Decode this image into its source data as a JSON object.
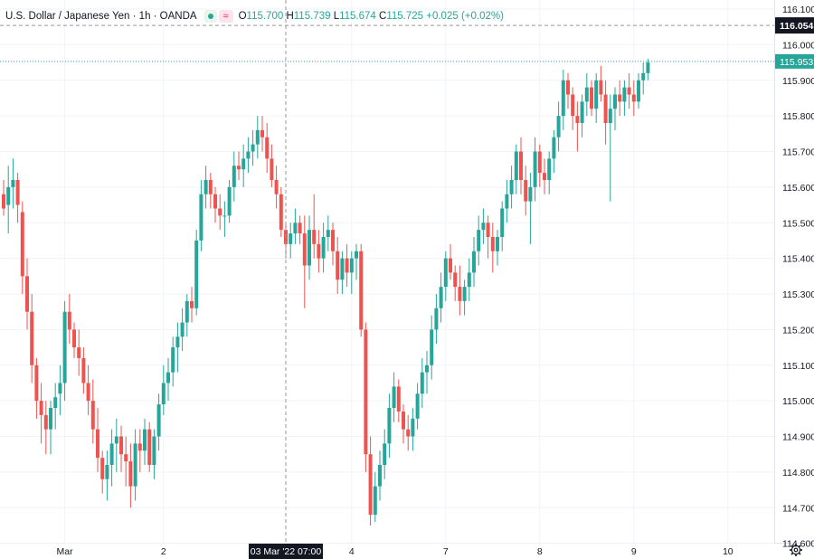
{
  "header": {
    "symbol": "U.S. Dollar / Japanese Yen · 1h · OANDA",
    "o_label": "O",
    "o": "115.700",
    "h_label": "H",
    "h": "115.739",
    "l_label": "L",
    "l": "115.674",
    "c_label": "C",
    "c": "115.725",
    "change": "+0.025 (+0.02%)"
  },
  "icons": {
    "visibility": "eye-dot-icon",
    "indicators": "wave-icon",
    "settings": "gear-icon"
  },
  "colors": {
    "up": "#26a69a",
    "down": "#ef5350",
    "grid": "#f0f3fa",
    "axis_text": "#131722"
  },
  "chart_data": {
    "type": "candlestick",
    "title": "U.S. Dollar / Japanese Yen · 1h · OANDA",
    "ylim": [
      114.5,
      116.1
    ],
    "y_ticks": [
      "116.100",
      "116.000",
      "115.900",
      "115.800",
      "115.700",
      "115.600",
      "115.500",
      "115.400",
      "115.300",
      "115.200",
      "115.100",
      "115.000",
      "114.900",
      "114.800",
      "114.700",
      "114.600"
    ],
    "x_ticks": [
      {
        "label": "Mar",
        "bar": 13
      },
      {
        "label": "2",
        "bar": 34
      },
      {
        "label": "4",
        "bar": 74
      },
      {
        "label": "7",
        "bar": 94
      },
      {
        "label": "8",
        "bar": 114
      },
      {
        "label": "9",
        "bar": 134
      },
      {
        "label": "10",
        "bar": 154
      }
    ],
    "crosshair": {
      "time_label": "03 Mar '22  07:00",
      "bar": 60,
      "price_label": "116.054",
      "price": 116.054
    },
    "last_price": {
      "label": "115.953",
      "value": 115.953
    },
    "candles": [
      [
        115.58,
        115.62,
        115.52,
        115.54
      ],
      [
        115.55,
        115.66,
        115.47,
        115.6
      ],
      [
        115.6,
        115.68,
        115.54,
        115.62
      ],
      [
        115.62,
        115.64,
        115.5,
        115.55
      ],
      [
        115.53,
        115.56,
        115.3,
        115.35
      ],
      [
        115.35,
        115.4,
        115.2,
        115.25
      ],
      [
        115.25,
        115.3,
        115.05,
        115.1
      ],
      [
        115.1,
        115.12,
        114.95,
        115.0
      ],
      [
        115.0,
        115.05,
        114.88,
        114.96
      ],
      [
        114.96,
        115.0,
        114.85,
        114.92
      ],
      [
        114.92,
        115.0,
        114.85,
        114.98
      ],
      [
        114.98,
        115.05,
        114.92,
        115.01
      ],
      [
        115.02,
        115.1,
        114.96,
        115.05
      ],
      [
        115.05,
        115.28,
        115.0,
        115.25
      ],
      [
        115.25,
        115.3,
        115.16,
        115.2
      ],
      [
        115.2,
        115.22,
        115.12,
        115.15
      ],
      [
        115.15,
        115.2,
        115.07,
        115.12
      ],
      [
        115.12,
        115.15,
        115.02,
        115.05
      ],
      [
        115.05,
        115.1,
        114.96,
        115.0
      ],
      [
        115.0,
        115.06,
        114.88,
        114.92
      ],
      [
        114.92,
        114.98,
        114.8,
        114.84
      ],
      [
        114.84,
        114.86,
        114.74,
        114.78
      ],
      [
        114.78,
        114.86,
        114.72,
        114.82
      ],
      [
        114.82,
        114.92,
        114.76,
        114.88
      ],
      [
        114.88,
        114.95,
        114.8,
        114.9
      ],
      [
        114.9,
        114.93,
        114.8,
        114.85
      ],
      [
        114.85,
        114.9,
        114.76,
        114.83
      ],
      [
        114.83,
        114.88,
        114.7,
        114.76
      ],
      [
        114.76,
        114.92,
        114.72,
        114.88
      ],
      [
        114.88,
        114.92,
        114.8,
        114.86
      ],
      [
        114.86,
        114.95,
        114.82,
        114.92
      ],
      [
        114.92,
        114.94,
        114.8,
        114.82
      ],
      [
        114.82,
        114.92,
        114.78,
        114.9
      ],
      [
        114.9,
        115.02,
        114.86,
        114.99
      ],
      [
        114.99,
        115.1,
        114.96,
        115.05
      ],
      [
        115.05,
        115.12,
        115.0,
        115.08
      ],
      [
        115.08,
        115.18,
        115.04,
        115.15
      ],
      [
        115.15,
        115.22,
        115.08,
        115.18
      ],
      [
        115.18,
        115.26,
        115.14,
        115.22
      ],
      [
        115.22,
        115.3,
        115.18,
        115.28
      ],
      [
        115.28,
        115.32,
        115.22,
        115.26
      ],
      [
        115.26,
        115.48,
        115.24,
        115.45
      ],
      [
        115.45,
        115.62,
        115.42,
        115.58
      ],
      [
        115.58,
        115.66,
        115.54,
        115.62
      ],
      [
        115.62,
        115.64,
        115.54,
        115.58
      ],
      [
        115.58,
        115.6,
        115.5,
        115.54
      ],
      [
        115.54,
        115.58,
        115.48,
        115.52
      ],
      [
        115.52,
        115.56,
        115.46,
        115.52
      ],
      [
        115.52,
        115.62,
        115.5,
        115.6
      ],
      [
        115.6,
        115.7,
        115.56,
        115.66
      ],
      [
        115.66,
        115.7,
        115.62,
        115.65
      ],
      [
        115.65,
        115.72,
        115.6,
        115.68
      ],
      [
        115.68,
        115.74,
        115.64,
        115.7
      ],
      [
        115.7,
        115.76,
        115.66,
        115.72
      ],
      [
        115.72,
        115.8,
        115.68,
        115.76
      ],
      [
        115.76,
        115.8,
        115.7,
        115.74
      ],
      [
        115.74,
        115.78,
        115.64,
        115.68
      ],
      [
        115.68,
        115.72,
        115.6,
        115.62
      ],
      [
        115.62,
        115.66,
        115.54,
        115.58
      ],
      [
        115.58,
        115.6,
        115.46,
        115.48
      ],
      [
        115.48,
        115.5,
        115.4,
        115.44
      ],
      [
        115.44,
        115.5,
        115.4,
        115.47
      ],
      [
        115.47,
        115.54,
        115.44,
        115.5
      ],
      [
        115.5,
        115.52,
        115.44,
        115.47
      ],
      [
        115.47,
        115.52,
        115.26,
        115.38
      ],
      [
        115.38,
        115.52,
        115.34,
        115.48
      ],
      [
        115.48,
        115.58,
        115.4,
        115.44
      ],
      [
        115.44,
        115.48,
        115.36,
        115.4
      ],
      [
        115.4,
        115.5,
        115.36,
        115.46
      ],
      [
        115.46,
        115.52,
        115.42,
        115.48
      ],
      [
        115.48,
        115.5,
        115.38,
        115.42
      ],
      [
        115.42,
        115.46,
        115.3,
        115.34
      ],
      [
        115.34,
        115.42,
        115.3,
        115.4
      ],
      [
        115.4,
        115.44,
        115.32,
        115.36
      ],
      [
        115.36,
        115.42,
        115.3,
        115.4
      ],
      [
        115.4,
        115.44,
        115.34,
        115.42
      ],
      [
        115.42,
        115.44,
        115.18,
        115.2
      ],
      [
        115.2,
        115.22,
        114.8,
        114.85
      ],
      [
        114.85,
        114.9,
        114.65,
        114.68
      ],
      [
        114.68,
        114.8,
        114.66,
        114.76
      ],
      [
        114.76,
        114.86,
        114.72,
        114.82
      ],
      [
        114.82,
        114.92,
        114.78,
        114.88
      ],
      [
        114.88,
        115.02,
        114.84,
        114.98
      ],
      [
        114.98,
        115.08,
        114.94,
        115.04
      ],
      [
        115.04,
        115.06,
        114.94,
        114.97
      ],
      [
        114.97,
        114.99,
        114.88,
        114.92
      ],
      [
        114.92,
        114.96,
        114.86,
        114.9
      ],
      [
        114.9,
        114.98,
        114.86,
        114.95
      ],
      [
        114.95,
        115.05,
        114.92,
        115.02
      ],
      [
        115.02,
        115.12,
        114.98,
        115.08
      ],
      [
        115.08,
        115.14,
        115.02,
        115.1
      ],
      [
        115.1,
        115.24,
        115.06,
        115.2
      ],
      [
        115.2,
        115.3,
        115.16,
        115.26
      ],
      [
        115.26,
        115.36,
        115.22,
        115.32
      ],
      [
        115.32,
        115.42,
        115.28,
        115.4
      ],
      [
        115.4,
        115.44,
        115.34,
        115.36
      ],
      [
        115.36,
        115.38,
        115.28,
        115.32
      ],
      [
        115.32,
        115.38,
        115.24,
        115.28
      ],
      [
        115.28,
        115.34,
        115.24,
        115.32
      ],
      [
        115.32,
        115.4,
        115.28,
        115.36
      ],
      [
        115.36,
        115.46,
        115.32,
        115.42
      ],
      [
        115.42,
        115.52,
        115.38,
        115.48
      ],
      [
        115.48,
        115.54,
        115.44,
        115.5
      ],
      [
        115.5,
        115.52,
        115.4,
        115.46
      ],
      [
        115.46,
        115.5,
        115.36,
        115.42
      ],
      [
        115.42,
        115.48,
        115.38,
        115.46
      ],
      [
        115.46,
        115.56,
        115.42,
        115.54
      ],
      [
        115.54,
        115.62,
        115.5,
        115.58
      ],
      [
        115.58,
        115.66,
        115.54,
        115.62
      ],
      [
        115.62,
        115.72,
        115.58,
        115.7
      ],
      [
        115.7,
        115.74,
        115.58,
        115.62
      ],
      [
        115.62,
        115.66,
        115.52,
        115.56
      ],
      [
        115.56,
        115.64,
        115.44,
        115.6
      ],
      [
        115.6,
        115.74,
        115.56,
        115.7
      ],
      [
        115.7,
        115.72,
        115.6,
        115.64
      ],
      [
        115.64,
        115.68,
        115.58,
        115.62
      ],
      [
        115.62,
        115.7,
        115.58,
        115.68
      ],
      [
        115.68,
        115.76,
        115.64,
        115.74
      ],
      [
        115.74,
        115.84,
        115.7,
        115.8
      ],
      [
        115.8,
        115.93,
        115.76,
        115.9
      ],
      [
        115.9,
        115.92,
        115.82,
        115.86
      ],
      [
        115.86,
        115.88,
        115.76,
        115.8
      ],
      [
        115.8,
        115.84,
        115.7,
        115.78
      ],
      [
        115.78,
        115.86,
        115.74,
        115.84
      ],
      [
        115.84,
        115.92,
        115.8,
        115.88
      ],
      [
        115.88,
        115.9,
        115.8,
        115.82
      ],
      [
        115.82,
        115.92,
        115.78,
        115.9
      ],
      [
        115.9,
        115.94,
        115.84,
        115.86
      ],
      [
        115.86,
        115.9,
        115.72,
        115.78
      ],
      [
        115.78,
        115.86,
        115.56,
        115.82
      ],
      [
        115.82,
        115.88,
        115.76,
        115.86
      ],
      [
        115.86,
        115.9,
        115.8,
        115.84
      ],
      [
        115.84,
        115.9,
        115.8,
        115.88
      ],
      [
        115.88,
        115.92,
        115.82,
        115.86
      ],
      [
        115.86,
        115.9,
        115.8,
        115.84
      ],
      [
        115.84,
        115.92,
        115.82,
        115.9
      ],
      [
        115.9,
        115.95,
        115.86,
        115.92
      ],
      [
        115.92,
        115.96,
        115.9,
        115.95
      ]
    ]
  }
}
